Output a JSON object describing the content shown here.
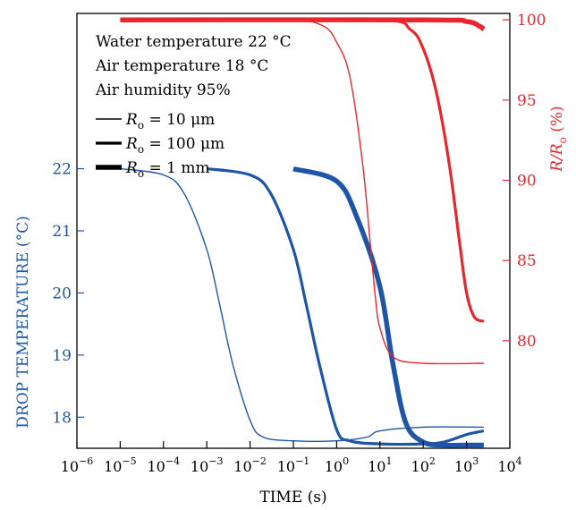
{
  "chart_data": {
    "type": "line",
    "xlabel": "TIME (s)",
    "x_scale": "log",
    "xlim": [
      1e-06,
      10000.0
    ],
    "x_ticks": [
      {
        "value": 1e-06,
        "base": "10",
        "exp": "−6"
      },
      {
        "value": 1e-05,
        "base": "10",
        "exp": "−5"
      },
      {
        "value": 0.0001,
        "base": "10",
        "exp": "−4"
      },
      {
        "value": 0.001,
        "base": "10",
        "exp": "−3"
      },
      {
        "value": 0.01,
        "base": "10",
        "exp": "−2"
      },
      {
        "value": 0.1,
        "base": "10",
        "exp": "−1"
      },
      {
        "value": 1,
        "base": "10",
        "exp": "0"
      },
      {
        "value": 10,
        "base": "10",
        "exp": "1"
      },
      {
        "value": 100,
        "base": "10",
        "exp": "2"
      },
      {
        "value": 1000,
        "base": "10",
        "exp": "3"
      },
      {
        "value": 10000,
        "base": "10",
        "exp": "4"
      }
    ],
    "left_axis": {
      "label": "DROP TEMPERATURE (°C)",
      "unit": "°C",
      "ylim": [
        17.5,
        24.5
      ],
      "ticks": [
        18,
        19,
        20,
        21,
        22
      ],
      "color": "#1f55a6"
    },
    "right_axis": {
      "label_main": "R/R",
      "label_sub": "o",
      "label_unit": " (%)",
      "ylim": [
        73.3,
        100.4
      ],
      "ticks": [
        80,
        85,
        90,
        95,
        100
      ],
      "color": "#e8262d"
    },
    "annotations": [
      "Water temperature 22 °C",
      "Air temperature 18 °C",
      "Air humidity 95%"
    ],
    "legend": [
      {
        "symbol": "R",
        "sub": "o",
        "text": " = 10 μm",
        "stroke": 1.4
      },
      {
        "symbol": "R",
        "sub": "o",
        "text": " = 100 μm",
        "stroke": 3.2
      },
      {
        "symbol": "R",
        "sub": "o",
        "text": " = 1 mm",
        "stroke": 5.5
      }
    ],
    "series": [
      {
        "axis": "left",
        "color": "#1f55a6",
        "stroke": 1.4,
        "points": [
          [
            1e-05,
            22.0
          ],
          [
            0.0001,
            21.9
          ],
          [
            0.0003,
            21.6
          ],
          [
            0.001,
            20.7
          ],
          [
            0.002,
            19.8
          ],
          [
            0.004,
            18.85
          ],
          [
            0.01,
            17.95
          ],
          [
            0.02,
            17.68
          ],
          [
            0.1,
            17.62
          ],
          [
            1,
            17.62
          ],
          [
            5,
            17.68
          ],
          [
            10,
            17.78
          ],
          [
            100,
            17.84
          ],
          [
            2500,
            17.84
          ]
        ]
      },
      {
        "axis": "left",
        "color": "#1f55a6",
        "stroke": 3.2,
        "points": [
          [
            0.001,
            22.0
          ],
          [
            0.01,
            21.9
          ],
          [
            0.03,
            21.6
          ],
          [
            0.1,
            20.7
          ],
          [
            0.2,
            19.8
          ],
          [
            0.4,
            18.85
          ],
          [
            1,
            17.8
          ],
          [
            2,
            17.62
          ],
          [
            10,
            17.57
          ],
          [
            100,
            17.57
          ],
          [
            300,
            17.6
          ],
          [
            1000,
            17.72
          ],
          [
            2500,
            17.78
          ]
        ]
      },
      {
        "axis": "left",
        "color": "#1f55a6",
        "stroke": 5.5,
        "points": [
          [
            0.1,
            22.0
          ],
          [
            1,
            21.8
          ],
          [
            3,
            21.2
          ],
          [
            10,
            20.1
          ],
          [
            20,
            18.85
          ],
          [
            40,
            17.9
          ],
          [
            100,
            17.6
          ],
          [
            300,
            17.55
          ],
          [
            1000,
            17.55
          ],
          [
            2500,
            17.55
          ]
        ]
      },
      {
        "axis": "right",
        "color": "#e8262d",
        "stroke": 1.4,
        "points": [
          [
            0.001,
            100
          ],
          [
            0.1,
            100
          ],
          [
            0.5,
            99.6
          ],
          [
            1,
            98.6
          ],
          [
            2,
            96.5
          ],
          [
            4,
            91
          ],
          [
            6,
            86
          ],
          [
            8,
            82.5
          ],
          [
            10,
            80.8
          ],
          [
            20,
            79.0
          ],
          [
            100,
            78.6
          ],
          [
            2500,
            78.6
          ]
        ]
      },
      {
        "axis": "right",
        "color": "#e8262d",
        "stroke": 3.2,
        "points": [
          [
            0.001,
            100
          ],
          [
            10,
            100
          ],
          [
            50,
            99.4
          ],
          [
            100,
            98.2
          ],
          [
            200,
            95.5
          ],
          [
            400,
            91
          ],
          [
            700,
            86
          ],
          [
            1000,
            83
          ],
          [
            1500,
            81.5
          ],
          [
            2500,
            81.2
          ]
        ]
      },
      {
        "axis": "right",
        "color": "#e8262d",
        "stroke": 5.5,
        "points": [
          [
            1e-05,
            100
          ],
          [
            100,
            100
          ],
          [
            1000,
            99.9
          ],
          [
            2000,
            99.6
          ],
          [
            2500,
            99.4
          ]
        ]
      }
    ]
  }
}
